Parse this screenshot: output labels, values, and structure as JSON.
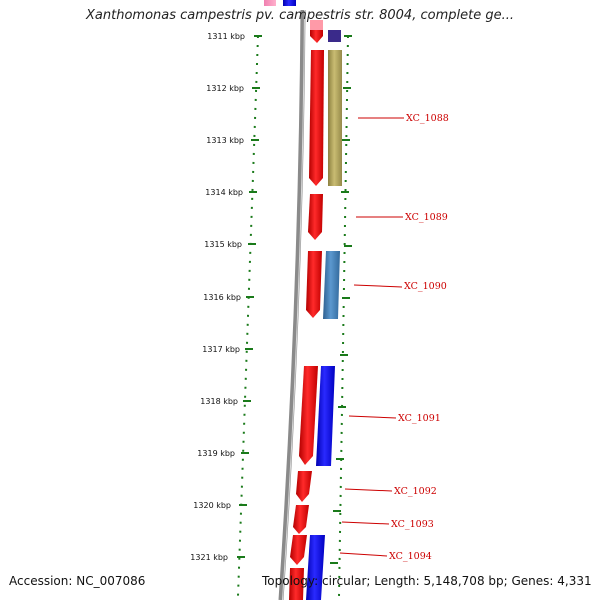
{
  "title": "Xanthomonas campestris pv. campestris str. 8004, complete ge...",
  "footer": {
    "accession": "Accession: NC_007086",
    "topology": "Topology: circular; Length: 5,148,708 bp; Genes: 4,331"
  },
  "colors": {
    "forward_gene": "#ff1a1a",
    "reverse_gene": "#1a1aff",
    "olive_feature": "#b3a65a",
    "steel_feature": "#4a86c0",
    "tick": "#1a7a1a",
    "backbone": "#7a7a7a",
    "label": "#cc0000"
  },
  "kbp_ticks": [
    "1311 kbp",
    "1312 kbp",
    "1313 kbp",
    "1314 kbp",
    "1315 kbp",
    "1316 kbp",
    "1317 kbp",
    "1318 kbp",
    "1319 kbp",
    "1320 kbp",
    "1321 kbp"
  ],
  "gene_labels": [
    "XC_1088",
    "XC_1089",
    "XC_1090",
    "XC_1091",
    "XC_1092",
    "XC_1093",
    "XC_1094"
  ]
}
